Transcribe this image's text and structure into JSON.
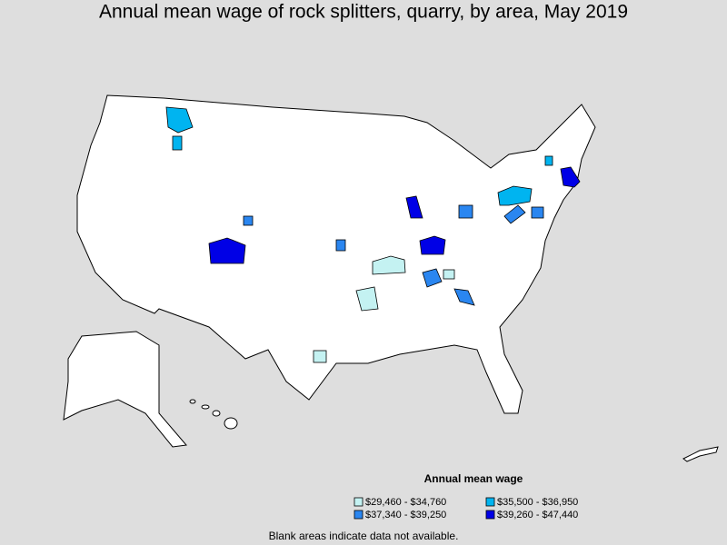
{
  "title": "Annual mean wage of rock splitters, quarry, by area, May 2019",
  "legend": {
    "title": "Annual mean wage",
    "items": [
      {
        "label": "$29,460 - $34,760",
        "color": "#c4f2f2"
      },
      {
        "label": "$35,500 - $36,950",
        "color": "#00b4f0"
      },
      {
        "label": "$37,340 - $39,250",
        "color": "#2a86f0"
      },
      {
        "label": "$39,260 - $47,440",
        "color": "#0000e6"
      }
    ]
  },
  "note": "Blank areas indicate data not available."
}
